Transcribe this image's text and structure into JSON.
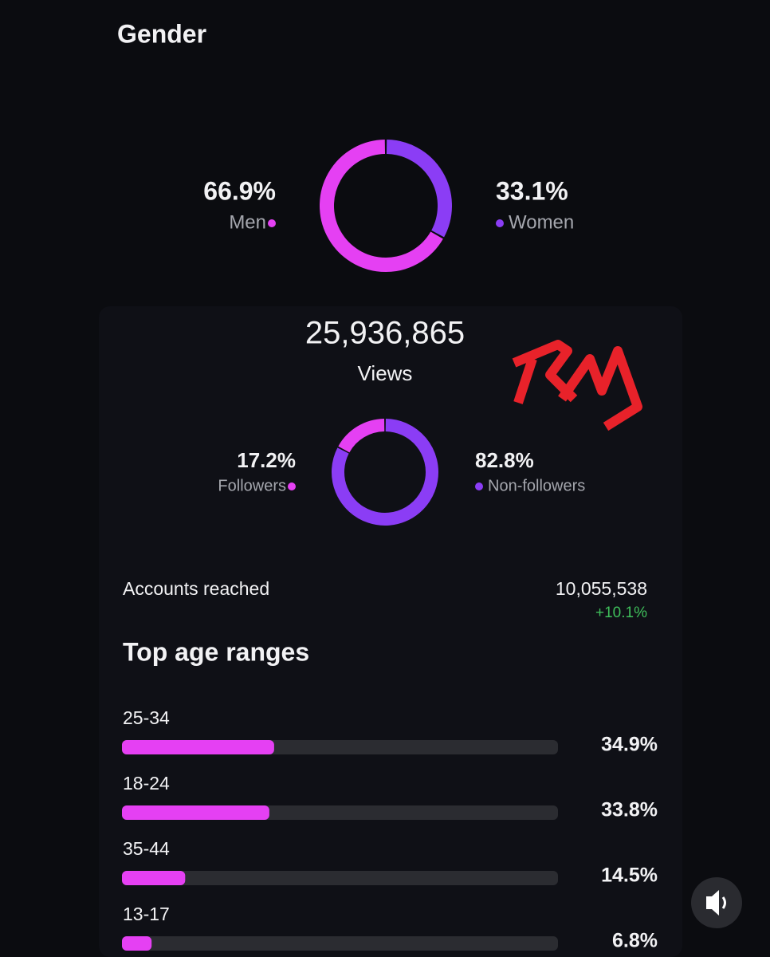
{
  "chart_data": [
    {
      "type": "pie",
      "title": "Gender",
      "hole": true,
      "categories": [
        "Men",
        "Women"
      ],
      "values": [
        66.9,
        33.1
      ],
      "value_labels": [
        "66.9%",
        "33.1%"
      ],
      "colors": [
        "#e540f3",
        "#8b3df5"
      ]
    },
    {
      "type": "pie",
      "title": "Views",
      "hole": true,
      "headline": {
        "value": 25936865,
        "label": "25,936,865"
      },
      "categories": [
        "Followers",
        "Non-followers"
      ],
      "values": [
        17.2,
        82.8
      ],
      "value_labels": [
        "17.2%",
        "82.8%"
      ],
      "colors": [
        "#e540f3",
        "#8b3df5"
      ]
    },
    {
      "type": "bar",
      "orientation": "horizontal",
      "title": "Top age ranges",
      "categories": [
        "25-34",
        "18-24",
        "35-44",
        "13-17"
      ],
      "values": [
        34.9,
        33.8,
        14.5,
        6.8
      ],
      "value_labels": [
        "34.9%",
        "33.8%",
        "14.5%",
        "6.8%"
      ],
      "color": "#e540f3",
      "track_color": "#2b2c31",
      "xlim": [
        0,
        100
      ]
    }
  ],
  "accounts_reached": {
    "label": "Accounts reached",
    "value": {
      "value": 10055538,
      "label": "10,055,538"
    },
    "change": {
      "value": 10.1,
      "label": "+10.1%",
      "color": "#3fbf5b"
    }
  }
}
